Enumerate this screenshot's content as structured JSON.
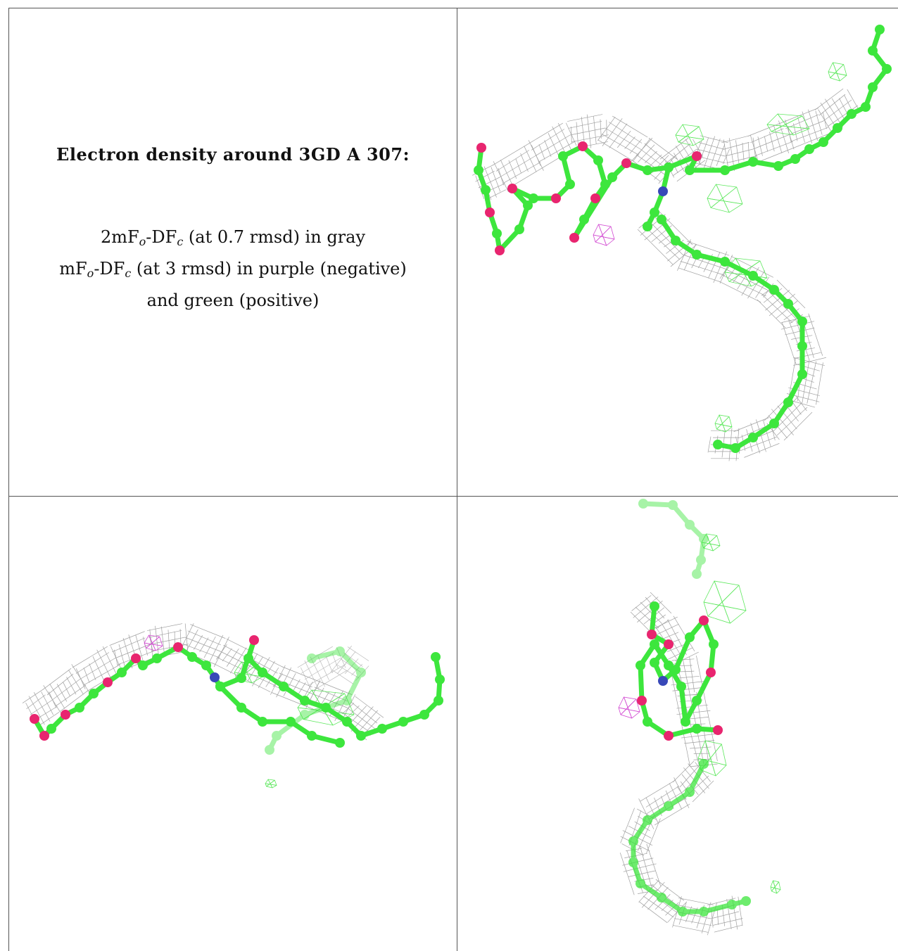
{
  "panel_title": "Electron density around 3GD A 307:",
  "legend": {
    "line1": {
      "a": "2mF",
      "o": "o",
      "b": "-DF",
      "c": "c",
      "rest": " (at 0.7 rmsd) in gray"
    },
    "line2": {
      "a": "mF",
      "o": "o",
      "b": "-DF",
      "c": "c",
      "rest": " (at 3 rmsd) in purple (negative)"
    },
    "line3": "and green (positive)"
  },
  "colors": {
    "carbon": "#3de63d",
    "oxygen": "#e8256f",
    "nitrogen": "#3848b8",
    "mesh_2fofc": "#a0a0a0",
    "mesh_negative": "#d24ad2",
    "mesh_positive": "#5ee85e",
    "border": "#555555"
  },
  "views": [
    {
      "name": "view-top-right"
    },
    {
      "name": "view-bottom-left"
    },
    {
      "name": "view-bottom-right"
    }
  ]
}
